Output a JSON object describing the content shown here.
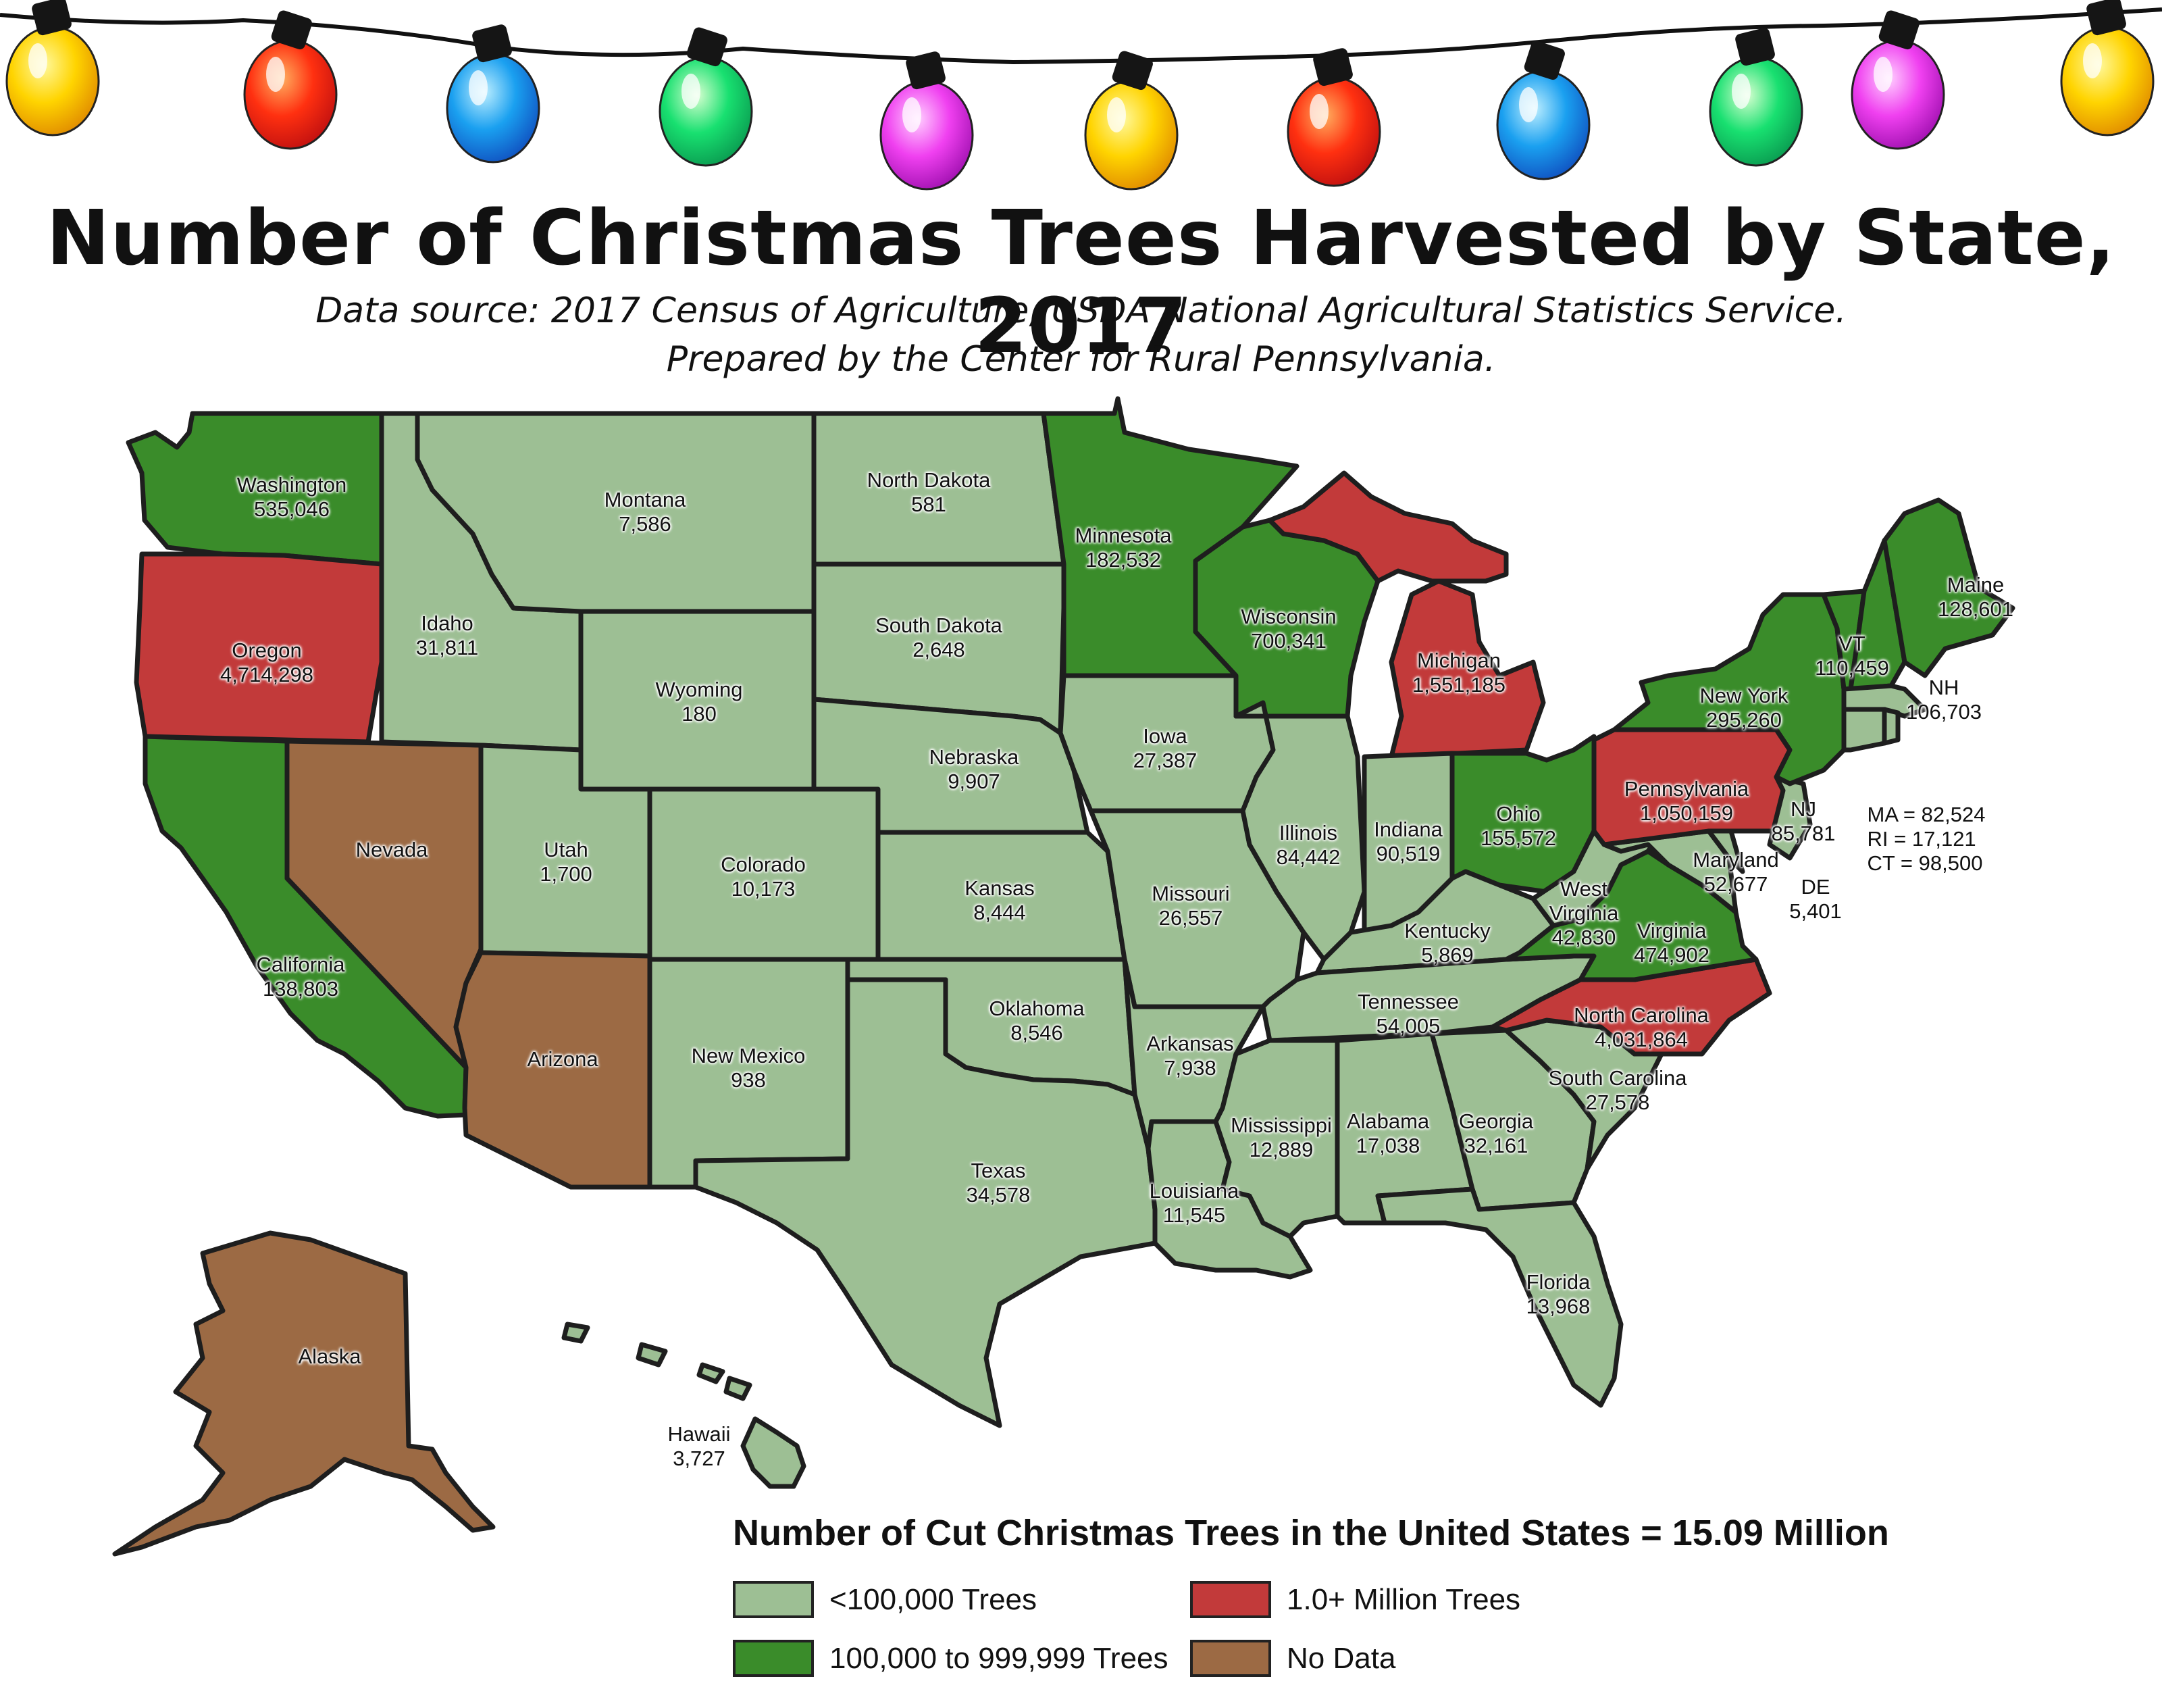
{
  "title": "Number of Christmas Trees Harvested by State, 2017",
  "subtitle_line1": "Data source: 2017 Census of Agriculture, USDA National Agricultural Statistics Service.",
  "subtitle_line2": "Prepared by the Center for Rural Pennsylvania.",
  "total_text": "Number of Cut Christmas Trees in the United States = 15.09 Million",
  "colors": {
    "low": "#9dbf94",
    "mid": "#3a8c2a",
    "high": "#c23a3a",
    "nodata": "#9c6a44",
    "border": "#1e1e1e"
  },
  "legend": {
    "low": "<100,000 Trees",
    "mid": "100,000 to 999,999 Trees",
    "high": "1.0+ Million Trees",
    "nodata": "No Data"
  },
  "states": {
    "washington": {
      "name": "Washington",
      "value": "535,046"
    },
    "oregon": {
      "name": "Oregon",
      "value": "4,714,298"
    },
    "california": {
      "name": "California",
      "value": "138,803"
    },
    "nevada": {
      "name": "Nevada",
      "value": ""
    },
    "idaho": {
      "name": "Idaho",
      "value": "31,811"
    },
    "montana": {
      "name": "Montana",
      "value": "7,586"
    },
    "wyoming": {
      "name": "Wyoming",
      "value": "180"
    },
    "utah": {
      "name": "Utah",
      "value": "1,700"
    },
    "arizona": {
      "name": "Arizona",
      "value": ""
    },
    "colorado": {
      "name": "Colorado",
      "value": "10,173"
    },
    "new_mexico": {
      "name": "New Mexico",
      "value": "938"
    },
    "north_dakota": {
      "name": "North Dakota",
      "value": "581"
    },
    "south_dakota": {
      "name": "South Dakota",
      "value": "2,648"
    },
    "nebraska": {
      "name": "Nebraska",
      "value": "9,907"
    },
    "kansas": {
      "name": "Kansas",
      "value": "8,444"
    },
    "oklahoma": {
      "name": "Oklahoma",
      "value": "8,546"
    },
    "texas": {
      "name": "Texas",
      "value": "34,578"
    },
    "minnesota": {
      "name": "Minnesota",
      "value": "182,532"
    },
    "iowa": {
      "name": "Iowa",
      "value": "27,387"
    },
    "missouri": {
      "name": "Missouri",
      "value": "26,557"
    },
    "arkansas": {
      "name": "Arkansas",
      "value": "7,938"
    },
    "louisiana": {
      "name": "Louisiana",
      "value": "11,545"
    },
    "wisconsin": {
      "name": "Wisconsin",
      "value": "700,341"
    },
    "illinois": {
      "name": "Illinois",
      "value": "84,442"
    },
    "michigan": {
      "name": "Michigan",
      "value": "1,551,185"
    },
    "indiana": {
      "name": "Indiana",
      "value": "90,519"
    },
    "ohio": {
      "name": "Ohio",
      "value": "155,572"
    },
    "kentucky": {
      "name": "Kentucky",
      "value": "5,869"
    },
    "tennessee": {
      "name": "Tennessee",
      "value": "54,005"
    },
    "mississippi": {
      "name": "Mississippi",
      "value": "12,889"
    },
    "alabama": {
      "name": "Alabama",
      "value": "17,038"
    },
    "georgia": {
      "name": "Georgia",
      "value": "32,161"
    },
    "florida": {
      "name": "Florida",
      "value": "13,968"
    },
    "south_carolina": {
      "name": "South Carolina",
      "value": "27,578"
    },
    "north_carolina": {
      "name": "North Carolina",
      "value": "4,031,864"
    },
    "virginia": {
      "name": "Virginia",
      "value": "474,902"
    },
    "west_virginia": {
      "name": "West Virginia",
      "value": "42,830"
    },
    "pennsylvania": {
      "name": "Pennsylvania",
      "value": "1,050,159"
    },
    "new_york": {
      "name": "New York",
      "value": "295,260"
    },
    "vermont": {
      "name": "VT",
      "value": "110,459"
    },
    "new_hampshire": {
      "name": "NH",
      "value": "106,703"
    },
    "maine": {
      "name": "Maine",
      "value": "128,601"
    },
    "new_jersey": {
      "name": "NJ",
      "value": "85,781"
    },
    "maryland": {
      "name": "Maryland",
      "value": "52,677"
    },
    "delaware": {
      "name": "DE",
      "value": "5,401"
    },
    "massachusetts": {
      "name": "MA",
      "value": "82,524"
    },
    "rhode_island": {
      "name": "RI",
      "value": "17,121"
    },
    "connecticut": {
      "name": "CT",
      "value": "98,500"
    },
    "alaska": {
      "name": "Alaska",
      "value": ""
    },
    "hawaii": {
      "name": "Hawaii",
      "value": "3,727"
    }
  },
  "ne_small": {
    "ma": "MA =  82,524",
    "ri": "RI = 17,121",
    "ct": "CT = 98,500"
  },
  "bulb_colors": [
    "yellow",
    "red",
    "blue",
    "green",
    "purple",
    "yellow",
    "red",
    "blue",
    "green",
    "purple",
    "yellow"
  ]
}
